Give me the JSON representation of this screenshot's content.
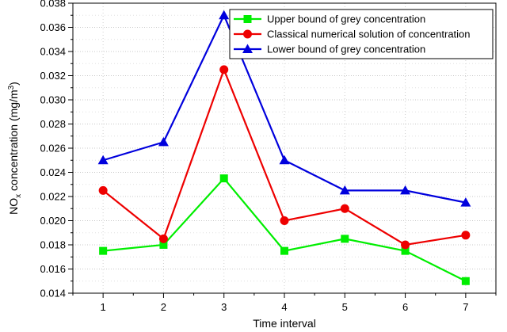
{
  "chart_data": {
    "type": "line",
    "title": "",
    "xlabel": "Time interval",
    "ylabel_main": "NO",
    "ylabel_sub": "x",
    "ylabel_rest": " concentration (mg/m",
    "ylabel_sup": "3",
    "ylabel_end": ")",
    "x": [
      1,
      2,
      3,
      4,
      5,
      6,
      7
    ],
    "xlim": [
      0.5,
      7.5
    ],
    "ylim": [
      0.014,
      0.038
    ],
    "yticks": [
      "0.014",
      "0.016",
      "0.018",
      "0.020",
      "0.022",
      "0.024",
      "0.026",
      "0.028",
      "0.030",
      "0.032",
      "0.034",
      "0.036",
      "0.038"
    ],
    "xticks": [
      "1",
      "2",
      "3",
      "4",
      "5",
      "6",
      "7"
    ],
    "grid": true,
    "legend_position": "top-right",
    "series": [
      {
        "name": "Upper bound of grey concentration",
        "color": "#00ee00",
        "marker": "square",
        "values": [
          0.0175,
          0.018,
          0.0235,
          0.0175,
          0.0185,
          0.0175,
          0.015
        ]
      },
      {
        "name": "Classical numerical solution of concentration",
        "color": "#ee0000",
        "marker": "circle",
        "values": [
          0.0225,
          0.0185,
          0.0325,
          0.02,
          0.021,
          0.018,
          0.0188
        ]
      },
      {
        "name": "Lower bound of grey concentration",
        "color": "#0000dd",
        "marker": "triangle",
        "values": [
          0.025,
          0.0265,
          0.037,
          0.025,
          0.0225,
          0.0225,
          0.0215
        ]
      }
    ]
  }
}
